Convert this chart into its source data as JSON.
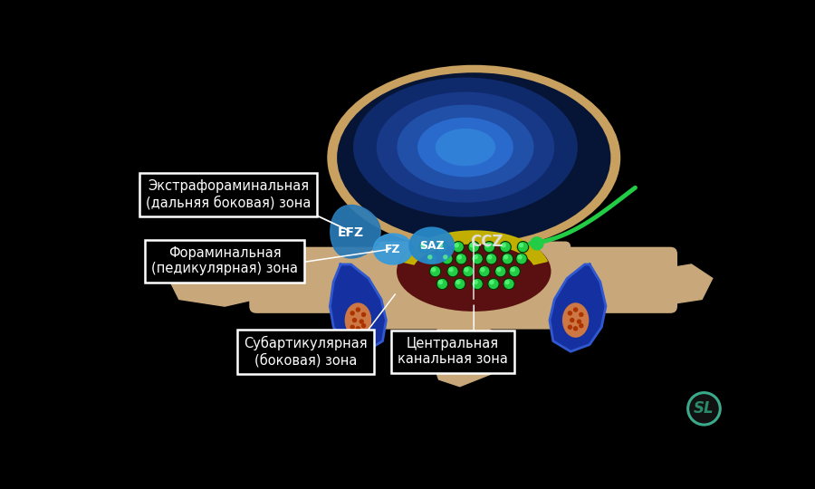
{
  "bg_color": "#000000",
  "bone_color": "#c8a87a",
  "bone_dark": "#a8883a",
  "disc_outer_color": "#c8a060",
  "disc_dark_blue": "#061535",
  "disc_mid_blue": "#0d2d7a",
  "disc_bright_blue": "#1a55c0",
  "disc_center_blue": "#2a7ae0",
  "spinal_canal_color": "#5a1010",
  "yellow_lig_color": "#c8b800",
  "efz_color": "#2a7ab8",
  "fz_color": "#3a9ad8",
  "saz_color": "#2888c8",
  "nerve_green": "#22cc44",
  "nerve_bright": "#66ff88",
  "facet_blue": "#1530a0",
  "facet_blue_edge": "#3058d0",
  "marrow_color": "#cc7744",
  "marrow_dot": "#aa3300",
  "label_bg": "#000000",
  "label_fg": "#ffffff",
  "label_border": "#ffffff",
  "logo_bg": "#111111",
  "logo_fg": "#2a8a6a",
  "logo_border": "#3aaa8a",
  "labels": {
    "efz_title": "Экстрафораминальная\n(дальняя боковая) зона",
    "fz_title": "Фораминальная\n(педикулярная) зона",
    "saz_title": "Субартикулярная\n(боковая) зона",
    "ccz_title": "Центральная\nканальная зона",
    "efz_abbr": "EFZ",
    "fz_abbr": "FZ",
    "saz_abbr": "SAZ",
    "ccz_abbr": "CCZ"
  }
}
